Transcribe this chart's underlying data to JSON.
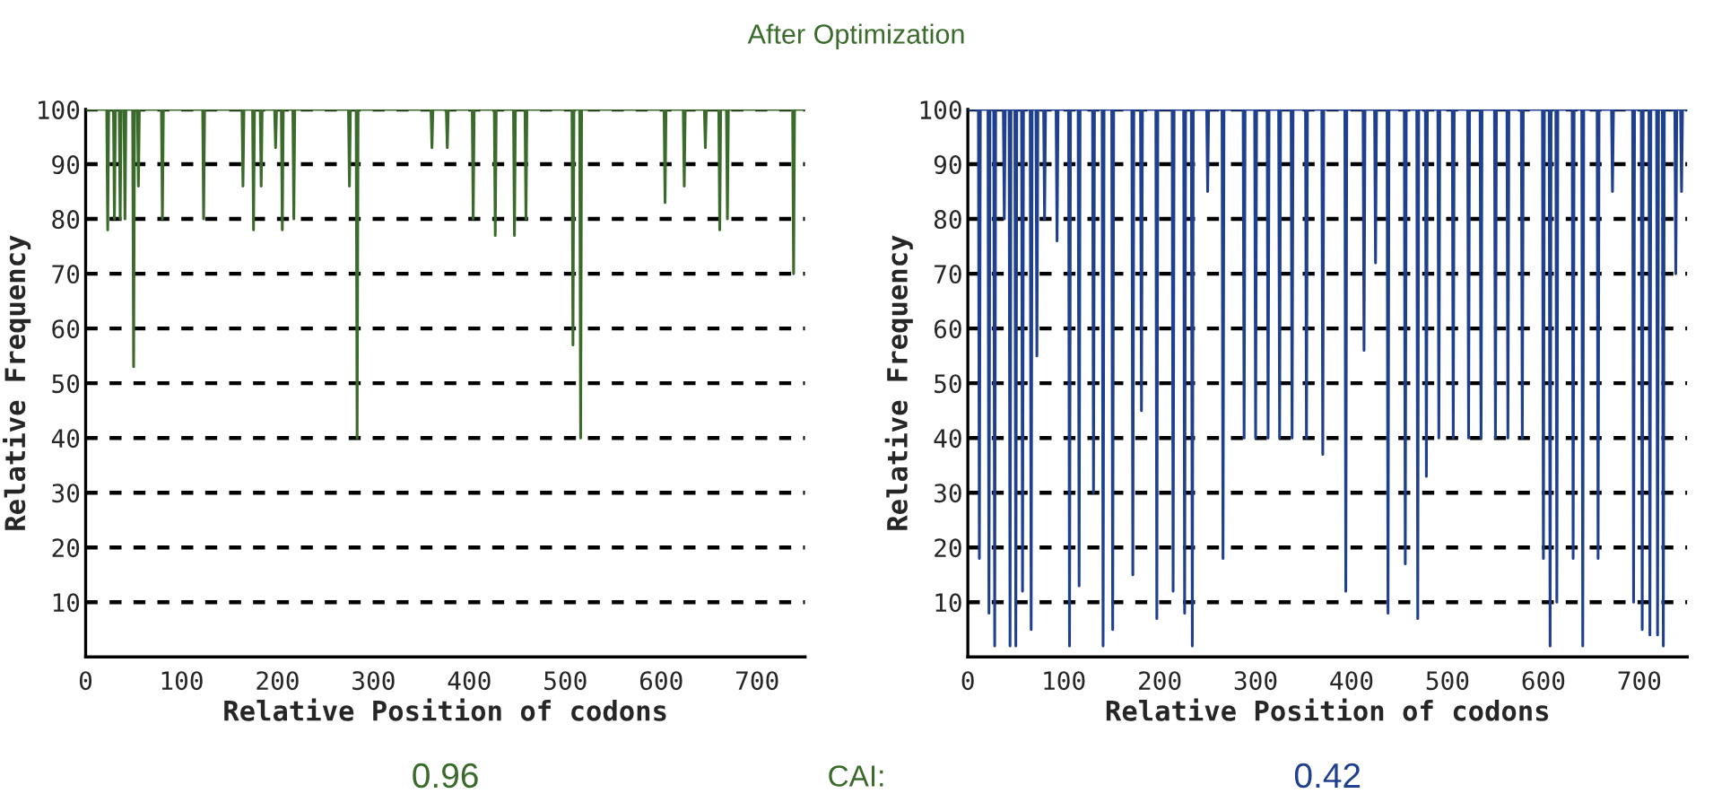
{
  "chart_data": [
    {
      "type": "line",
      "title": "After Optimization",
      "xlabel": "Relative Position of codons",
      "ylabel": "Relative Frequency",
      "xlim": [
        0,
        750
      ],
      "ylim": [
        0,
        100
      ],
      "xticks": [
        0,
        100,
        200,
        300,
        400,
        500,
        600,
        700
      ],
      "yticks": [
        10,
        20,
        30,
        40,
        50,
        60,
        70,
        80,
        90,
        100
      ],
      "grid": "y",
      "marker": "none",
      "line_style": "solid",
      "legend": false,
      "annotations": [
        "0.96",
        "CAI:"
      ],
      "series": [
        {
          "color": "#3a6b2a",
          "x": [
            1,
            22,
            23,
            24,
            29,
            30,
            31,
            35,
            36,
            37,
            40,
            41,
            42,
            49,
            50,
            51,
            54,
            55,
            56,
            79,
            80,
            81,
            122,
            123,
            124,
            163,
            164,
            165,
            174,
            175,
            176,
            182,
            183,
            184,
            197,
            198,
            199,
            204,
            205,
            206,
            216,
            217,
            218,
            274,
            275,
            276,
            282,
            283,
            284,
            360,
            361,
            362,
            376,
            377,
            378,
            403,
            404,
            405,
            426,
            427,
            428,
            446,
            447,
            448,
            458,
            459,
            460,
            507,
            508,
            509,
            515,
            516,
            517,
            603,
            604,
            605,
            623,
            624,
            625,
            645,
            646,
            647,
            660,
            661,
            662,
            668,
            669,
            670,
            737,
            738,
            739,
            750
          ],
          "values": [
            100,
            100,
            78,
            100,
            100,
            80,
            100,
            100,
            80,
            100,
            100,
            80,
            100,
            100,
            53,
            100,
            100,
            86,
            100,
            100,
            80,
            100,
            100,
            80,
            100,
            100,
            86,
            100,
            100,
            78,
            100,
            100,
            86,
            100,
            100,
            93,
            100,
            100,
            78,
            100,
            100,
            80,
            100,
            100,
            86,
            100,
            100,
            40,
            100,
            100,
            93,
            100,
            100,
            93,
            100,
            100,
            80,
            100,
            100,
            77,
            100,
            100,
            77,
            100,
            100,
            80,
            100,
            100,
            57,
            100,
            100,
            40,
            100,
            100,
            83,
            100,
            100,
            86,
            100,
            100,
            93,
            100,
            100,
            78,
            100,
            100,
            80,
            100,
            100,
            70,
            100,
            100
          ]
        }
      ]
    },
    {
      "type": "line",
      "xlabel": "Relative Position of codons",
      "ylabel": "Relative Frequency",
      "xlim": [
        0,
        750
      ],
      "ylim": [
        0,
        100
      ],
      "xticks": [
        0,
        100,
        200,
        300,
        400,
        500,
        600,
        700
      ],
      "yticks": [
        10,
        20,
        30,
        40,
        50,
        60,
        70,
        80,
        90,
        100
      ],
      "grid": "y",
      "marker": "none",
      "line_style": "solid",
      "legend": false,
      "annotations": [
        "0.42"
      ],
      "series": [
        {
          "color": "#1f3f8f",
          "x": [
            1,
            11,
            12,
            13,
            21,
            22,
            23,
            27,
            28,
            29,
            37,
            38,
            39,
            43,
            44,
            45,
            49,
            50,
            51,
            56,
            57,
            58,
            65,
            66,
            67,
            71,
            72,
            73,
            79,
            80,
            81,
            92,
            93,
            94,
            105,
            106,
            107,
            115,
            116,
            117,
            130,
            131,
            132,
            140,
            141,
            142,
            150,
            151,
            152,
            171,
            172,
            173,
            180,
            181,
            182,
            196,
            197,
            198,
            213,
            214,
            215,
            225,
            226,
            227,
            233,
            234,
            235,
            249,
            250,
            251,
            265,
            266,
            267,
            287,
            288,
            289,
            299,
            300,
            301,
            312,
            313,
            314,
            324,
            325,
            326,
            337,
            338,
            339,
            352,
            353,
            354,
            369,
            370,
            371,
            393,
            394,
            395,
            412,
            413,
            414,
            424,
            425,
            426,
            437,
            438,
            439,
            455,
            456,
            457,
            468,
            469,
            470,
            477,
            478,
            479,
            490,
            491,
            492,
            505,
            506,
            507,
            521,
            522,
            523,
            534,
            535,
            536,
            549,
            550,
            551,
            562,
            563,
            564,
            577,
            578,
            579,
            599,
            600,
            601,
            606,
            607,
            608,
            613,
            614,
            615,
            630,
            631,
            632,
            640,
            641,
            642,
            656,
            657,
            658,
            671,
            672,
            673,
            693,
            694,
            695,
            702,
            703,
            704,
            710,
            711,
            712,
            718,
            719,
            720,
            724,
            725,
            726,
            737,
            738,
            739,
            743,
            744,
            745,
            750
          ],
          "values": [
            100,
            100,
            18,
            100,
            100,
            8,
            100,
            100,
            2,
            100,
            100,
            80,
            100,
            100,
            2,
            100,
            100,
            2,
            100,
            100,
            12,
            100,
            100,
            5,
            100,
            100,
            55,
            100,
            100,
            80,
            100,
            100,
            76,
            100,
            100,
            2,
            100,
            100,
            13,
            100,
            100,
            30,
            100,
            100,
            2,
            100,
            100,
            5,
            100,
            100,
            15,
            100,
            100,
            45,
            100,
            100,
            7,
            100,
            100,
            12,
            100,
            100,
            8,
            100,
            100,
            2,
            100,
            100,
            85,
            100,
            100,
            18,
            100,
            100,
            40,
            100,
            100,
            40,
            100,
            100,
            40,
            100,
            100,
            40,
            100,
            100,
            40,
            100,
            100,
            40,
            100,
            100,
            37,
            100,
            100,
            12,
            100,
            100,
            56,
            100,
            100,
            72,
            100,
            100,
            8,
            100,
            100,
            17,
            100,
            100,
            7,
            100,
            100,
            33,
            100,
            100,
            40,
            100,
            100,
            40,
            100,
            100,
            40,
            100,
            100,
            40,
            100,
            100,
            40,
            100,
            100,
            40,
            100,
            100,
            40,
            100,
            100,
            18,
            100,
            100,
            2,
            100,
            100,
            10,
            100,
            100,
            18,
            100,
            100,
            2,
            100,
            100,
            18,
            100,
            100,
            85,
            100,
            100,
            10,
            100,
            100,
            5,
            100,
            100,
            4,
            100,
            100,
            4,
            100,
            100,
            2,
            100,
            100,
            70,
            100,
            100,
            85,
            100,
            100
          ]
        }
      ]
    }
  ]
}
